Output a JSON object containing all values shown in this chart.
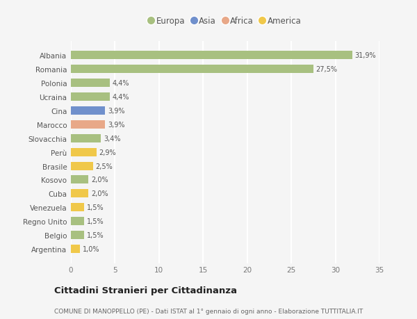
{
  "countries": [
    "Albania",
    "Romania",
    "Polonia",
    "Ucraina",
    "Cina",
    "Marocco",
    "Slovacchia",
    "Perù",
    "Brasile",
    "Kosovo",
    "Cuba",
    "Venezuela",
    "Regno Unito",
    "Belgio",
    "Argentina"
  ],
  "values": [
    31.9,
    27.5,
    4.4,
    4.4,
    3.9,
    3.9,
    3.4,
    2.9,
    2.5,
    2.0,
    2.0,
    1.5,
    1.5,
    1.5,
    1.0
  ],
  "labels": [
    "31,9%",
    "27,5%",
    "4,4%",
    "4,4%",
    "3,9%",
    "3,9%",
    "3,4%",
    "2,9%",
    "2,5%",
    "2,0%",
    "2,0%",
    "1,5%",
    "1,5%",
    "1,5%",
    "1,0%"
  ],
  "continents": [
    "Europa",
    "Europa",
    "Europa",
    "Europa",
    "Asia",
    "Africa",
    "Europa",
    "America",
    "America",
    "Europa",
    "America",
    "America",
    "Europa",
    "Europa",
    "America"
  ],
  "colors": {
    "Europa": "#a8c080",
    "Asia": "#7090cc",
    "Africa": "#e8a888",
    "America": "#f0c84a"
  },
  "background_color": "#f5f5f5",
  "title": "Cittadini Stranieri per Cittadinanza",
  "subtitle": "COMUNE DI MANOPPELLO (PE) - Dati ISTAT al 1° gennaio di ogni anno - Elaborazione TUTTITALIA.IT",
  "xlim": [
    0,
    35
  ],
  "xticks": [
    0,
    5,
    10,
    15,
    20,
    25,
    30,
    35
  ],
  "grid_color": "#ffffff",
  "bar_height": 0.6,
  "legend_order": [
    "Europa",
    "Asia",
    "Africa",
    "America"
  ]
}
